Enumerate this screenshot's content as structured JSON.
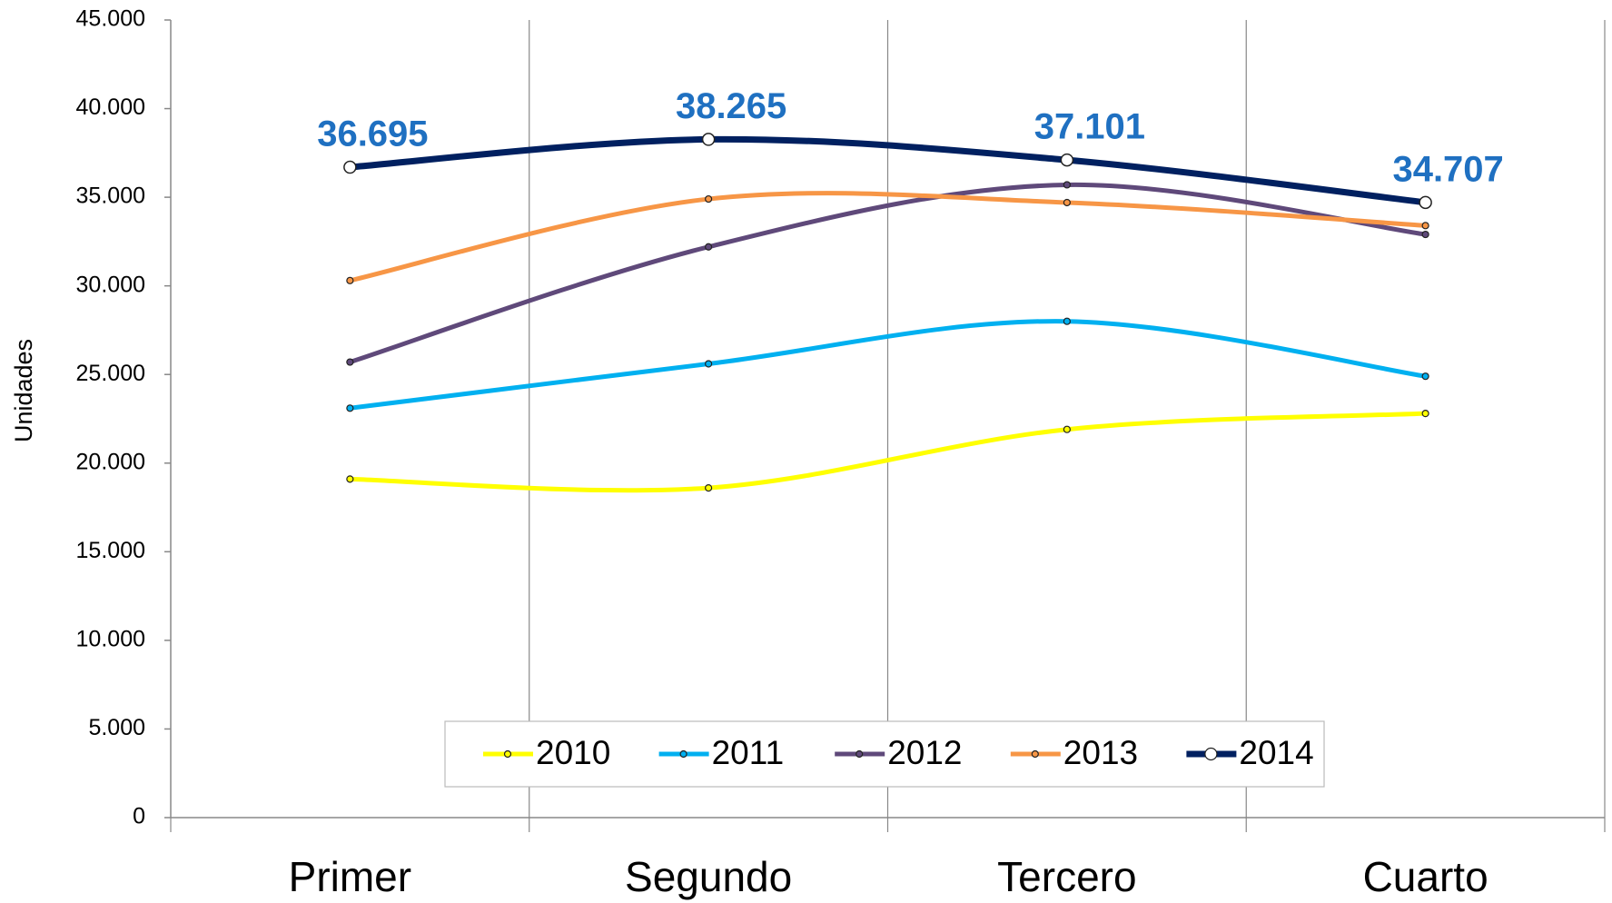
{
  "chart_data": {
    "type": "line",
    "y_label": "Unidades",
    "categories": [
      "Primer",
      "Segundo",
      "Tercero",
      "Cuarto"
    ],
    "series": [
      {
        "name": "2010",
        "color": "#ffff00",
        "values": [
          19100,
          18600,
          21900,
          22800
        ]
      },
      {
        "name": "2011",
        "color": "#00b0f0",
        "values": [
          23100,
          25600,
          28000,
          24900
        ]
      },
      {
        "name": "2012",
        "color": "#5f497a",
        "values": [
          25700,
          32200,
          35700,
          32900
        ]
      },
      {
        "name": "2013",
        "color": "#f79646",
        "values": [
          30300,
          34900,
          34700,
          33400
        ]
      },
      {
        "name": "2014",
        "color": "#002060",
        "values": [
          36695,
          38265,
          37101,
          34707
        ],
        "value_labels": [
          "36.695",
          "38.265",
          "37.101",
          "34.707"
        ]
      }
    ],
    "ylim": [
      0,
      45000
    ],
    "yticks": [
      0,
      {
        "value": 5000,
        "label": "5.000"
      },
      {
        "value": 10000,
        "label": "10.000"
      },
      {
        "value": 15000,
        "label": "15.000"
      },
      {
        "value": 20000,
        "label": "20.000"
      },
      {
        "value": 25000,
        "label": "25.000"
      },
      {
        "value": 30000,
        "label": "30.000"
      },
      {
        "value": 35000,
        "label": "35.000"
      },
      {
        "value": 40000,
        "label": "40.000"
      },
      {
        "value": 45000,
        "label": "45.000"
      }
    ],
    "legend": "bottom",
    "grid": false
  }
}
